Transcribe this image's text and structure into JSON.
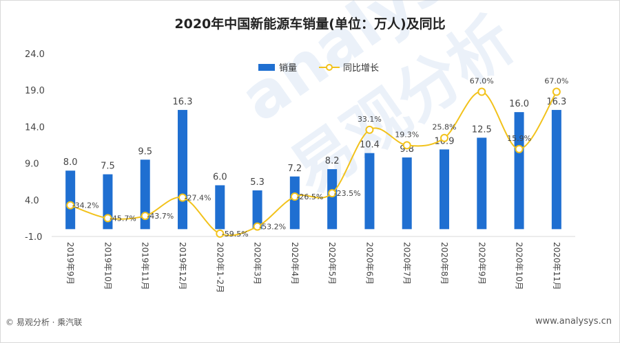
{
  "title": "2020年中国新能源车销量(单位：万人)及同比",
  "footer": {
    "source": "© 易观分析 · 乘汽联",
    "site": "www.analysys.cn"
  },
  "watermark": "analysys 易观分析",
  "colors": {
    "bar": "#1f6fd1",
    "line": "#f2c21b",
    "grid": "#d9d9d9"
  },
  "chart_data": {
    "type": "bar",
    "categories": [
      "2019年9月",
      "2019年10月",
      "2019年11月",
      "2019年12月",
      "2020年1-2月",
      "2020年3月",
      "2020年4月",
      "2020年5月",
      "2020年6月",
      "2020年7月",
      "2020年8月",
      "2020年9月",
      "2020年10月",
      "2020年11月"
    ],
    "series": [
      {
        "name": "销量",
        "type": "bar",
        "values": [
          8.0,
          7.5,
          9.5,
          16.3,
          6.0,
          5.3,
          7.2,
          8.2,
          10.4,
          9.8,
          10.9,
          12.5,
          16.0,
          16.3
        ],
        "labels": [
          "8.0",
          "7.5",
          "9.5",
          "16.3",
          "6.0",
          "5.3",
          "7.2",
          "8.2",
          "10.4",
          "9.8",
          "10.9",
          "12.5",
          "16.0",
          "16.3"
        ]
      },
      {
        "name": "同比增长",
        "type": "line",
        "axis": "secondary",
        "values": [
          -34.2,
          -45.7,
          -43.7,
          -27.4,
          -59.5,
          -53.2,
          -26.5,
          -23.5,
          33.1,
          19.3,
          25.8,
          67.0,
          15.9,
          67.0
        ],
        "labels": [
          "-34.2%",
          "-45.7%",
          "-43.7%",
          "-27.4%",
          "-59.5%",
          "-53.2%",
          "-26.5%",
          "-23.5%",
          "33.1%",
          "19.3%",
          "25.8%",
          "67.0%",
          "15.9%",
          "67.0%"
        ]
      }
    ],
    "yticks": [
      "24.0",
      "19.0",
      "14.0",
      "9.0",
      "4.0",
      "-1.0"
    ],
    "ylim": [
      -1.0,
      24.0
    ],
    "legend": "top-center"
  }
}
